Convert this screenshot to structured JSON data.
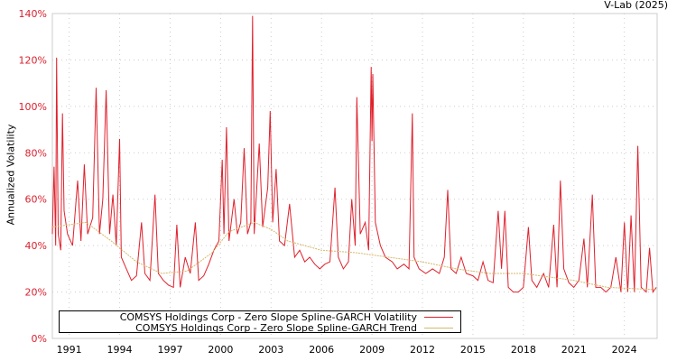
{
  "credit": "V-Lab (2025)",
  "chart_data": {
    "type": "line",
    "title": "",
    "xlabel": "",
    "ylabel": "Annualized Volatility",
    "xlim": [
      1990.0,
      2025.95
    ],
    "ylim": [
      0,
      140
    ],
    "y_ticks": [
      0,
      20,
      40,
      60,
      80,
      100,
      120,
      140
    ],
    "y_tick_labels": [
      "0%",
      "20%",
      "40%",
      "60%",
      "80%",
      "100%",
      "120%",
      "140%"
    ],
    "x_ticks": [
      1991,
      1994,
      1997,
      2000,
      2003,
      2006,
      2009,
      2012,
      2015,
      2018,
      2021,
      2024
    ],
    "x_tick_labels": [
      "1991",
      "1994",
      "1997",
      "2000",
      "2003",
      "2006",
      "2009",
      "2012",
      "2015",
      "2018",
      "2021",
      "2024"
    ],
    "grid": true,
    "legend_position": "bottom-left",
    "series": [
      {
        "name": "COMSYS Holdings Corp - Zero Slope Spline-GARCH Volatility",
        "color": "#e0202c",
        "points": [
          [
            1990.0,
            45
          ],
          [
            1990.1,
            74
          ],
          [
            1990.2,
            40
          ],
          [
            1990.25,
            121
          ],
          [
            1990.35,
            45
          ],
          [
            1990.5,
            38
          ],
          [
            1990.6,
            97
          ],
          [
            1990.7,
            55
          ],
          [
            1990.9,
            45
          ],
          [
            1991.2,
            40
          ],
          [
            1991.5,
            68
          ],
          [
            1991.7,
            42
          ],
          [
            1991.9,
            75
          ],
          [
            1992.1,
            45
          ],
          [
            1992.4,
            52
          ],
          [
            1992.6,
            108
          ],
          [
            1992.8,
            45
          ],
          [
            1993.0,
            60
          ],
          [
            1993.2,
            107
          ],
          [
            1993.4,
            45
          ],
          [
            1993.6,
            62
          ],
          [
            1993.8,
            40
          ],
          [
            1994.0,
            86
          ],
          [
            1994.1,
            35
          ],
          [
            1994.4,
            30
          ],
          [
            1994.7,
            25
          ],
          [
            1995.0,
            27
          ],
          [
            1995.3,
            50
          ],
          [
            1995.5,
            28
          ],
          [
            1995.8,
            25
          ],
          [
            1996.1,
            62
          ],
          [
            1996.3,
            28
          ],
          [
            1996.6,
            25
          ],
          [
            1996.9,
            23
          ],
          [
            1997.2,
            22
          ],
          [
            1997.4,
            49
          ],
          [
            1997.6,
            22
          ],
          [
            1997.9,
            35
          ],
          [
            1998.2,
            28
          ],
          [
            1998.5,
            50
          ],
          [
            1998.7,
            25
          ],
          [
            1999.0,
            27
          ],
          [
            1999.3,
            32
          ],
          [
            1999.6,
            38
          ],
          [
            1999.9,
            42
          ],
          [
            2000.1,
            77
          ],
          [
            2000.2,
            45
          ],
          [
            2000.35,
            91
          ],
          [
            2000.5,
            42
          ],
          [
            2000.8,
            60
          ],
          [
            2001.0,
            45
          ],
          [
            2001.2,
            50
          ],
          [
            2001.4,
            82
          ],
          [
            2001.6,
            45
          ],
          [
            2001.8,
            50
          ],
          [
            2001.9,
            139
          ],
          [
            2002.0,
            45
          ],
          [
            2002.3,
            84
          ],
          [
            2002.5,
            48
          ],
          [
            2002.8,
            65
          ],
          [
            2002.95,
            98
          ],
          [
            2003.1,
            50
          ],
          [
            2003.3,
            73
          ],
          [
            2003.5,
            42
          ],
          [
            2003.8,
            40
          ],
          [
            2004.1,
            58
          ],
          [
            2004.4,
            35
          ],
          [
            2004.7,
            38
          ],
          [
            2005.0,
            33
          ],
          [
            2005.3,
            35
          ],
          [
            2005.6,
            32
          ],
          [
            2005.9,
            30
          ],
          [
            2006.2,
            32
          ],
          [
            2006.5,
            33
          ],
          [
            2006.8,
            65
          ],
          [
            2007.0,
            35
          ],
          [
            2007.3,
            30
          ],
          [
            2007.6,
            33
          ],
          [
            2007.8,
            60
          ],
          [
            2008.0,
            40
          ],
          [
            2008.1,
            104
          ],
          [
            2008.3,
            45
          ],
          [
            2008.6,
            50
          ],
          [
            2008.8,
            38
          ],
          [
            2008.95,
            117
          ],
          [
            2009.0,
            85
          ],
          [
            2009.05,
            114
          ],
          [
            2009.2,
            50
          ],
          [
            2009.5,
            40
          ],
          [
            2009.8,
            35
          ],
          [
            2010.2,
            33
          ],
          [
            2010.5,
            30
          ],
          [
            2010.9,
            32
          ],
          [
            2011.2,
            30
          ],
          [
            2011.4,
            97
          ],
          [
            2011.5,
            35
          ],
          [
            2011.8,
            30
          ],
          [
            2012.2,
            28
          ],
          [
            2012.6,
            30
          ],
          [
            2013.0,
            28
          ],
          [
            2013.3,
            35
          ],
          [
            2013.5,
            64
          ],
          [
            2013.7,
            30
          ],
          [
            2014.0,
            28
          ],
          [
            2014.3,
            35
          ],
          [
            2014.6,
            28
          ],
          [
            2015.0,
            27
          ],
          [
            2015.3,
            25
          ],
          [
            2015.6,
            33
          ],
          [
            2015.9,
            25
          ],
          [
            2016.2,
            24
          ],
          [
            2016.5,
            55
          ],
          [
            2016.7,
            30
          ],
          [
            2016.9,
            55
          ],
          [
            2017.1,
            22
          ],
          [
            2017.4,
            20
          ],
          [
            2017.7,
            20
          ],
          [
            2018.0,
            22
          ],
          [
            2018.3,
            48
          ],
          [
            2018.5,
            25
          ],
          [
            2018.8,
            22
          ],
          [
            2019.2,
            28
          ],
          [
            2019.5,
            22
          ],
          [
            2019.8,
            49
          ],
          [
            2020.0,
            22
          ],
          [
            2020.2,
            68
          ],
          [
            2020.4,
            30
          ],
          [
            2020.7,
            24
          ],
          [
            2021.0,
            22
          ],
          [
            2021.3,
            25
          ],
          [
            2021.6,
            43
          ],
          [
            2021.8,
            22
          ],
          [
            2022.1,
            62
          ],
          [
            2022.3,
            22
          ],
          [
            2022.6,
            22
          ],
          [
            2022.9,
            20
          ],
          [
            2023.2,
            22
          ],
          [
            2023.5,
            35
          ],
          [
            2023.8,
            20
          ],
          [
            2024.0,
            50
          ],
          [
            2024.2,
            20
          ],
          [
            2024.4,
            53
          ],
          [
            2024.6,
            20
          ],
          [
            2024.8,
            83
          ],
          [
            2025.0,
            22
          ],
          [
            2025.3,
            20
          ],
          [
            2025.5,
            39
          ],
          [
            2025.7,
            20
          ],
          [
            2025.9,
            22
          ]
        ]
      },
      {
        "name": "COMSYS Holdings Corp - Zero Slope Spline-GARCH Trend",
        "color": "#d4b86a",
        "points": [
          [
            1990.0,
            48
          ],
          [
            1992.0,
            50
          ],
          [
            1993.5,
            42
          ],
          [
            1995.0,
            33
          ],
          [
            1996.5,
            28
          ],
          [
            1998.0,
            29
          ],
          [
            1999.5,
            37
          ],
          [
            2000.5,
            46
          ],
          [
            2002.0,
            50
          ],
          [
            2003.0,
            47
          ],
          [
            2004.0,
            42
          ],
          [
            2006.0,
            38
          ],
          [
            2008.0,
            37
          ],
          [
            2010.0,
            35
          ],
          [
            2012.0,
            33
          ],
          [
            2014.0,
            30
          ],
          [
            2016.0,
            28
          ],
          [
            2018.0,
            28
          ],
          [
            2019.0,
            27
          ],
          [
            2021.0,
            25
          ],
          [
            2023.0,
            22
          ],
          [
            2025.9,
            21
          ]
        ]
      }
    ]
  }
}
